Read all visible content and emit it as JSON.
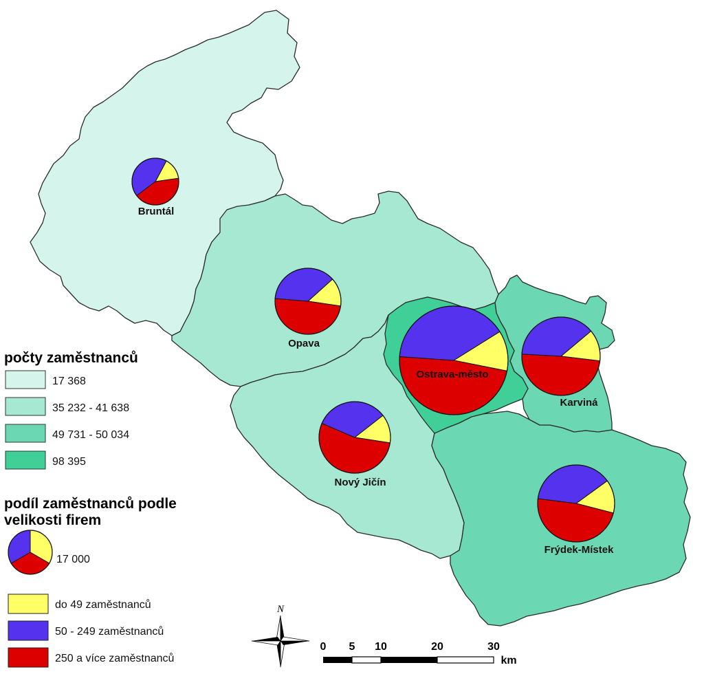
{
  "colors": {
    "class_1": "#d5f4eb",
    "class_2": "#a6e8d1",
    "class_3": "#6bd7b3",
    "class_4": "#3fcf97",
    "small_firms": "#ffff66",
    "medium_firms": "#5533ee",
    "large_firms": "#dd0000"
  },
  "legend_choropleth": {
    "title": "počty zaměstnanců",
    "classes": [
      {
        "label": "17 368",
        "color": "#d5f4eb"
      },
      {
        "label": "35 232 - 41 638",
        "color": "#a6e8d1"
      },
      {
        "label": "49 731 - 50 034",
        "color": "#6bd7b3"
      },
      {
        "label": "98 395",
        "color": "#3fcf97"
      }
    ]
  },
  "legend_pies": {
    "title_line1": "podíl zaměstnanců podle",
    "title_line2": "velikosti firem",
    "reference_value": "17 000",
    "categories": [
      {
        "label": "do 49 zaměstnanců",
        "color": "#ffff66"
      },
      {
        "label": "50 - 249 zaměstnanců",
        "color": "#5533ee"
      },
      {
        "label": "250 a více zaměstnanců",
        "color": "#dd0000"
      }
    ]
  },
  "districts": [
    {
      "name": "Bruntál",
      "employees_class": "17 368",
      "shares": {
        "small": 0.15,
        "medium": 0.43,
        "large": 0.42
      }
    },
    {
      "name": "Opava",
      "employees_class": "35 232 - 41 638",
      "shares": {
        "small": 0.14,
        "medium": 0.37,
        "large": 0.49
      }
    },
    {
      "name": "Ostrava-město",
      "employees_class": "98 395",
      "shares": {
        "small": 0.12,
        "medium": 0.4,
        "large": 0.48
      }
    },
    {
      "name": "Karviná",
      "employees_class": "49 731 - 50 034",
      "shares": {
        "small": 0.13,
        "medium": 0.38,
        "large": 0.49
      }
    },
    {
      "name": "Nový Jičín",
      "employees_class": "35 232 - 41 638",
      "shares": {
        "small": 0.13,
        "medium": 0.33,
        "large": 0.54
      }
    },
    {
      "name": "Frýdek-Místek",
      "employees_class": "49 731 - 50 034",
      "shares": {
        "small": 0.14,
        "medium": 0.38,
        "large": 0.48
      }
    }
  ],
  "north_arrow": {
    "label": "N"
  },
  "scale_bar": {
    "ticks": [
      "0",
      "5",
      "10",
      "20",
      "30"
    ],
    "unit": "km"
  }
}
